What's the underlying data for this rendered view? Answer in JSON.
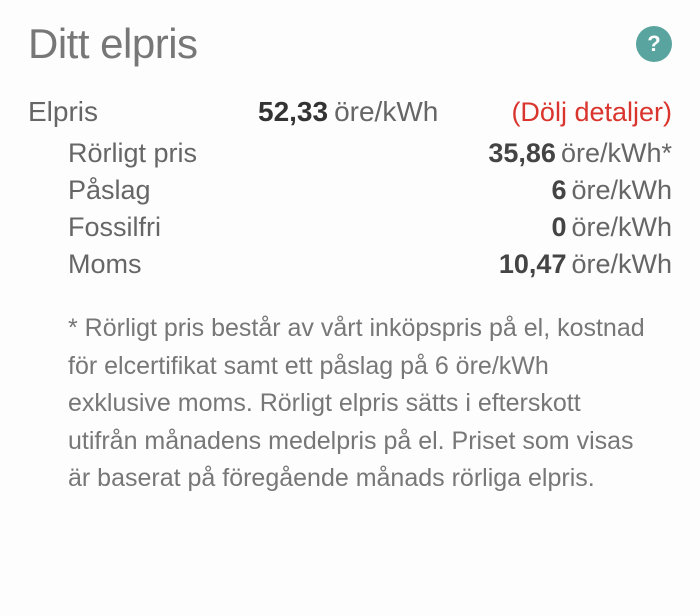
{
  "header": {
    "title": "Ditt elpris",
    "help_symbol": "?"
  },
  "price": {
    "label": "Elpris",
    "value": "52,33",
    "unit": "öre/kWh",
    "toggle": "(Dölj detaljer)"
  },
  "details": [
    {
      "label": "Rörligt pris",
      "value": "35,86",
      "unit": "öre/kWh*"
    },
    {
      "label": "Påslag",
      "value": "6",
      "unit": "öre/kWh"
    },
    {
      "label": "Fossilfri",
      "value": "0",
      "unit": "öre/kWh"
    },
    {
      "label": "Moms",
      "value": "10,47",
      "unit": "öre/kWh"
    }
  ],
  "footnote": "* Rörligt pris består av vårt inköpspris på el, kostnad för elcertifikat samt ett påslag på 6 öre/kWh exklusive moms. Rörligt elpris sätts i efterskott utifrån månadens medelpris på el. Priset som visas är baserat på föregående månads rörliga elpris."
}
